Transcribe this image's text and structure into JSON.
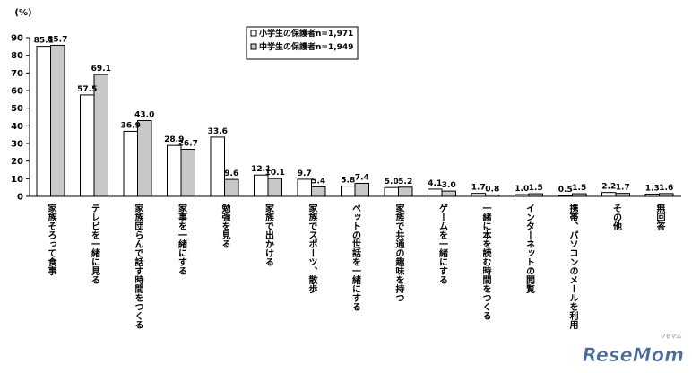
{
  "chart_data": {
    "type": "bar",
    "ylabel": "(%)",
    "ylim": [
      0,
      90
    ],
    "yticks": [
      0,
      10,
      20,
      30,
      40,
      50,
      60,
      70,
      80,
      90
    ],
    "grid": false,
    "legend_position": "top",
    "categories": [
      "家族そろって食事",
      "テレビを一緒に見る",
      "家族団らんで話す時間をつくる",
      "家事を一緒にする",
      "勉強を見る",
      "家族で出かける",
      "家族でスポーツ、散歩",
      "ペットの世話を一緒にする",
      "家族で共通の趣味を持つ",
      "ゲームを一緒にする",
      "一緒に本を読む時間をつくる",
      "インターネットの閲覧",
      "携帯、パソコンのメールを利用",
      "その他",
      "無回答"
    ],
    "series": [
      {
        "name": "小学生の保護者n=1,971",
        "color": "#ffffff",
        "values": [
          85.1,
          57.5,
          36.9,
          28.9,
          33.6,
          12.1,
          9.7,
          5.8,
          5.0,
          4.1,
          1.7,
          1.0,
          0.5,
          2.2,
          1.3
        ]
      },
      {
        "name": "中学生の保護者n=1,949",
        "color": "#c8c8c8",
        "values": [
          85.7,
          69.1,
          43.0,
          26.7,
          9.6,
          10.1,
          5.4,
          7.4,
          5.2,
          3.0,
          0.8,
          1.5,
          1.5,
          1.7,
          1.6
        ]
      }
    ]
  },
  "watermark": {
    "brand": "ReseMom",
    "kana": "リセマム"
  }
}
